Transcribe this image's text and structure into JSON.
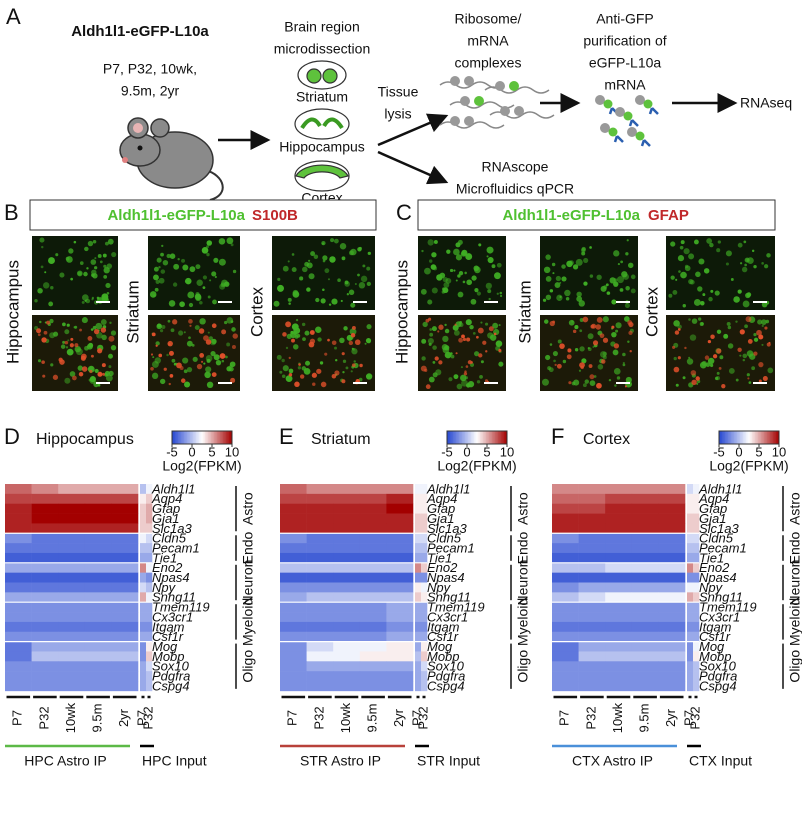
{
  "panel_a": {
    "letter": "A",
    "mouse_line": "Aldh1l1-eGFP-L10a",
    "ages": [
      "P7, P32, 10wk,",
      "9.5m, 2yr"
    ],
    "dissection": [
      "Brain region",
      "microdissection"
    ],
    "regions": [
      "Striatum",
      "Hippocampus",
      "Cortex"
    ],
    "lysis": [
      "Tissue",
      "lysis"
    ],
    "complexes": [
      "Ribosome/",
      "mRNA",
      "complexes"
    ],
    "purification": [
      "Anti-GFP",
      "purification of",
      "eGFP-L10a",
      "mRNA"
    ],
    "output": "RNAseq",
    "validation": [
      "RNAscope",
      "Microfluidics qPCR"
    ]
  },
  "panel_b": {
    "letter": "B",
    "reporter": "Aldh1l1-eGFP-L10a",
    "marker": "S100B",
    "regions": [
      "Hippocampus",
      "Striatum",
      "Cortex"
    ]
  },
  "panel_c": {
    "letter": "C",
    "reporter": "Aldh1l1-eGFP-L10a",
    "marker": "GFAP",
    "regions": [
      "Hippocampus",
      "Striatum",
      "Cortex"
    ]
  },
  "heatmaps": [
    {
      "letter": "D",
      "title": "Hippocampus",
      "colorbar": {
        "label": "Log2(FPKM)",
        "range": [
          -5,
          10
        ],
        "ticks": [
          -5,
          0,
          5,
          10
        ],
        "low_color": "#2546d0",
        "mid_color": "#ffffff",
        "high_color": "#a30000"
      },
      "sample_groups": [
        {
          "label": "HPC Astro IP",
          "color": "#5cb947",
          "columns": [
            "P7",
            "P32",
            "10wk",
            "9.5m",
            "2yr"
          ]
        },
        {
          "label": "HPC Input",
          "color": "#000000",
          "columns": [
            "P7",
            "P32"
          ]
        }
      ],
      "gene_groups": [
        {
          "label": "Astro",
          "genes": [
            "Aldh1l1",
            "Aqp4",
            "Gfap",
            "Gja1",
            "Slc1a3"
          ],
          "values": [
            [
              7,
              6,
              5,
              5,
              5,
              0,
              2
            ],
            [
              8,
              8,
              8,
              8,
              8,
              3,
              4
            ],
            [
              9,
              10,
              10,
              10,
              10,
              4,
              5
            ],
            [
              9,
              10,
              10,
              10,
              10,
              4,
              5
            ],
            [
              9,
              9,
              9,
              9,
              9,
              4,
              4
            ]
          ]
        },
        {
          "label": "Endo",
          "genes": [
            "Cldn5",
            "Pecam1",
            "Tie1"
          ],
          "values": [
            [
              -2,
              -3,
              -3,
              -3,
              -3,
              2,
              1
            ],
            [
              -3,
              -3,
              -3,
              -3,
              -3,
              0,
              0
            ],
            [
              -4,
              -4,
              -4,
              -4,
              -4,
              -1,
              -1
            ]
          ]
        },
        {
          "label": "Neuron",
          "genes": [
            "Eno2",
            "Npas4",
            "Npy",
            "Snhg11"
          ],
          "values": [
            [
              -1,
              -1,
              -1,
              -1,
              -1,
              6,
              2
            ],
            [
              -4,
              -4,
              -4,
              -4,
              -4,
              -1,
              -2
            ],
            [
              -3,
              -3,
              -3,
              -3,
              -3,
              1,
              0
            ],
            [
              -1,
              -1,
              -1,
              -1,
              -1,
              5,
              2
            ]
          ]
        },
        {
          "label": "Myeloid",
          "genes": [
            "Tmem119",
            "Cx3cr1",
            "Itgam",
            "Csf1r"
          ],
          "values": [
            [
              -2,
              -2,
              -2,
              -2,
              -2,
              -1,
              -1
            ],
            [
              -2,
              -2,
              -2,
              -2,
              -2,
              -1,
              -1
            ],
            [
              -3,
              -3,
              -3,
              -3,
              -3,
              -2,
              -2
            ],
            [
              -2,
              -2,
              -2,
              -2,
              -2,
              -1,
              -1
            ]
          ]
        },
        {
          "label": "Oligo",
          "genes": [
            "Mog",
            "Mobp",
            "Sox10",
            "Pdgfra",
            "Cspg4"
          ],
          "values": [
            [
              -3,
              -1,
              -1,
              -1,
              -1,
              -2,
              3
            ],
            [
              -3,
              0,
              0,
              0,
              0,
              -2,
              4
            ],
            [
              -2,
              -2,
              -2,
              -2,
              -2,
              -1,
              1
            ],
            [
              -2,
              -2,
              -2,
              -2,
              -2,
              -1,
              0
            ],
            [
              -2,
              -2,
              -2,
              -2,
              -2,
              -1,
              0
            ]
          ]
        }
      ]
    },
    {
      "letter": "E",
      "title": "Striatum",
      "colorbar": {
        "label": "Log2(FPKM)",
        "range": [
          -5,
          10
        ],
        "ticks": [
          -5,
          0,
          5,
          10
        ],
        "low_color": "#2546d0",
        "mid_color": "#ffffff",
        "high_color": "#a30000"
      },
      "sample_groups": [
        {
          "label": "STR Astro IP",
          "color": "#b8413a",
          "columns": [
            "P7",
            "P32",
            "10wk",
            "9.5m",
            "2yr"
          ]
        },
        {
          "label": "STR Input",
          "color": "#000000",
          "columns": [
            "P7",
            "P32"
          ]
        }
      ],
      "gene_groups": [
        {
          "label": "Astro",
          "genes": [
            "Aldh1l1",
            "Aqp4",
            "Gfap",
            "Gja1",
            "Slc1a3"
          ],
          "values": [
            [
              7,
              6,
              6,
              6,
              6,
              2,
              2
            ],
            [
              8,
              8,
              8,
              8,
              9,
              3,
              3
            ],
            [
              9,
              9,
              9,
              9,
              10,
              3,
              3
            ],
            [
              9,
              9,
              9,
              9,
              9,
              4,
              4
            ],
            [
              9,
              9,
              9,
              9,
              9,
              4,
              4
            ]
          ]
        },
        {
          "label": "Endo",
          "genes": [
            "Cldn5",
            "Pecam1",
            "Tie1"
          ],
          "values": [
            [
              -2,
              -3,
              -3,
              -3,
              -3,
              1,
              1
            ],
            [
              -3,
              -3,
              -3,
              -3,
              -3,
              0,
              0
            ],
            [
              -4,
              -4,
              -4,
              -4,
              -4,
              -1,
              -1
            ]
          ]
        },
        {
          "label": "Neuron",
          "genes": [
            "Eno2",
            "Npas4",
            "Npy",
            "Snhg11"
          ],
          "values": [
            [
              0,
              0,
              0,
              0,
              0,
              6,
              4
            ],
            [
              -4,
              -4,
              -4,
              -4,
              -4,
              -2,
              -2
            ],
            [
              -2,
              -2,
              -2,
              -2,
              -2,
              3,
              2
            ],
            [
              -1,
              0,
              0,
              0,
              0,
              4,
              3
            ]
          ]
        },
        {
          "label": "Myeloid",
          "genes": [
            "Tmem119",
            "Cx3cr1",
            "Itgam",
            "Csf1r"
          ],
          "values": [
            [
              -2,
              -2,
              -2,
              -2,
              -1,
              -1,
              -1
            ],
            [
              -2,
              -2,
              -2,
              -2,
              -1,
              -1,
              -1
            ],
            [
              -3,
              -3,
              -3,
              -3,
              -2,
              -2,
              -2
            ],
            [
              -2,
              -2,
              -2,
              -2,
              -1,
              -1,
              -1
            ]
          ]
        },
        {
          "label": "Oligo",
          "genes": [
            "Mog",
            "Mobp",
            "Sox10",
            "Pdgfra",
            "Cspg4"
          ],
          "values": [
            [
              -2,
              1,
              2,
              2,
              3,
              -1,
              3
            ],
            [
              -2,
              2,
              2,
              3,
              3,
              0,
              4
            ],
            [
              -2,
              -1,
              -1,
              -1,
              -1,
              -1,
              1
            ],
            [
              -2,
              -2,
              -2,
              -2,
              -2,
              -1,
              0
            ],
            [
              -2,
              -2,
              -2,
              -2,
              -2,
              -1,
              0
            ]
          ]
        }
      ]
    },
    {
      "letter": "F",
      "title": "Cortex",
      "colorbar": {
        "label": "Log2(FPKM)",
        "range": [
          -5,
          10
        ],
        "ticks": [
          -5,
          0,
          5,
          10
        ],
        "low_color": "#2546d0",
        "mid_color": "#ffffff",
        "high_color": "#a30000"
      },
      "sample_groups": [
        {
          "label": "CTX Astro IP",
          "color": "#4a90d9",
          "columns": [
            "P7",
            "P32",
            "10wk",
            "9.5m",
            "2yr"
          ]
        },
        {
          "label": "CTX Input",
          "color": "#000000",
          "columns": [
            "P7",
            "P32"
          ]
        }
      ],
      "gene_groups": [
        {
          "label": "Astro",
          "genes": [
            "Aldh1l1",
            "Aqp4",
            "Gfap",
            "Gja1",
            "Slc1a3"
          ],
          "values": [
            [
              6,
              6,
              6,
              6,
              6,
              1,
              2
            ],
            [
              7,
              7,
              8,
              8,
              8,
              3,
              3
            ],
            [
              8,
              8,
              9,
              9,
              9,
              3,
              3
            ],
            [
              9,
              9,
              9,
              9,
              9,
              4,
              4
            ],
            [
              9,
              9,
              9,
              9,
              9,
              4,
              4
            ]
          ]
        },
        {
          "label": "Endo",
          "genes": [
            "Cldn5",
            "Pecam1",
            "Tie1"
          ],
          "values": [
            [
              -2,
              -3,
              -3,
              -3,
              -3,
              1,
              1
            ],
            [
              -3,
              -3,
              -3,
              -3,
              -3,
              0,
              0
            ],
            [
              -4,
              -4,
              -4,
              -4,
              -4,
              -1,
              -1
            ]
          ]
        },
        {
          "label": "Neuron",
          "genes": [
            "Eno2",
            "Npas4",
            "Npy",
            "Snhg11"
          ],
          "values": [
            [
              0,
              0,
              1,
              1,
              1,
              6,
              4
            ],
            [
              -4,
              -4,
              -4,
              -4,
              -4,
              -2,
              -2
            ],
            [
              -2,
              -1,
              -1,
              -1,
              -1,
              2,
              2
            ],
            [
              0,
              1,
              2,
              2,
              2,
              5,
              4
            ]
          ]
        },
        {
          "label": "Myeloid",
          "genes": [
            "Tmem119",
            "Cx3cr1",
            "Itgam",
            "Csf1r"
          ],
          "values": [
            [
              -2,
              -2,
              -2,
              -2,
              -2,
              -1,
              -1
            ],
            [
              -2,
              -2,
              -2,
              -2,
              -2,
              -1,
              -1
            ],
            [
              -3,
              -3,
              -3,
              -3,
              -3,
              -2,
              -2
            ],
            [
              -2,
              -2,
              -2,
              -2,
              -2,
              -1,
              -1
            ]
          ]
        },
        {
          "label": "Oligo",
          "genes": [
            "Mog",
            "Mobp",
            "Sox10",
            "Pdgfra",
            "Cspg4"
          ],
          "values": [
            [
              -3,
              -1,
              -1,
              -1,
              -1,
              -2,
              2
            ],
            [
              -3,
              0,
              0,
              0,
              0,
              -2,
              3
            ],
            [
              -2,
              -2,
              -2,
              -2,
              -2,
              -1,
              0
            ],
            [
              -2,
              -2,
              -2,
              -2,
              -2,
              -1,
              0
            ],
            [
              -2,
              -2,
              -2,
              -2,
              -2,
              -1,
              0
            ]
          ]
        }
      ]
    }
  ]
}
